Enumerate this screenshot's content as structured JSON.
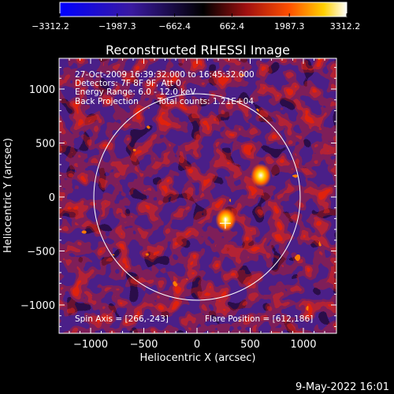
{
  "colorbar": {
    "ticks": [
      "−3312.2",
      "−1987.3",
      "−662.4",
      "662.4",
      "1987.3",
      "3312.2"
    ],
    "min": -3312.2,
    "max": 3312.2
  },
  "chart_data": {
    "type": "heatmap",
    "title": "Reconstructed RHESSI Image",
    "xlabel": "Heliocentric X (arcsec)",
    "ylabel": "Heliocentric Y (arcsec)",
    "xlim": [
      -1300,
      1300
    ],
    "ylim": [
      -1300,
      1300
    ],
    "xticks": [
      -1000,
      -500,
      0,
      500,
      1000
    ],
    "xtick_labels": [
      "−1000",
      "−500",
      "0",
      "500",
      "1000"
    ],
    "yticks": [
      1000,
      500,
      0,
      -500,
      -1000
    ],
    "ytick_labels": [
      "1000",
      "500",
      "0",
      "−500",
      "−1000"
    ],
    "solar_limb_radius": 970,
    "spin_axis_marker": [
      266,
      -243
    ],
    "sources": [
      {
        "x": 600,
        "y": 200,
        "peak": 3312.2
      },
      {
        "x": 270,
        "y": -210,
        "peak": 3000
      }
    ],
    "annotations": {
      "line1": "27-Oct-2009 16:39:32.000 to 16:45:32.000",
      "line2": "Detectors: 7F 8F 9F, Att 0",
      "line3": "Energy Range: 6.0 - 12.0 keV",
      "line4a": "Back Projection",
      "line4b": "Total counts: 1.21E+04",
      "spin_axis": "Spin Axis = [266,-243]",
      "flare_position": "Flare Position = [612,186]"
    }
  },
  "footer": {
    "timestamp": "9-May-2022 16:01"
  }
}
